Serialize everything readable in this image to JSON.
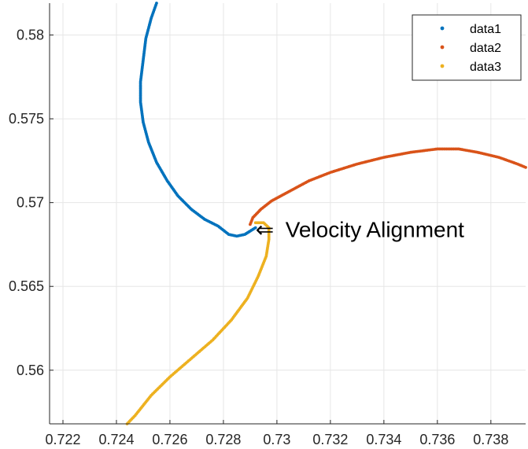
{
  "chart_data": {
    "type": "scatter",
    "title": "",
    "xlabel": "",
    "ylabel": "",
    "xlim": [
      0.7215,
      0.7393
    ],
    "ylim": [
      0.5568,
      0.5819
    ],
    "grid": true,
    "legend_position": "top-right",
    "x_ticks": [
      0.722,
      0.724,
      0.726,
      0.728,
      0.73,
      0.732,
      0.734,
      0.736,
      0.738
    ],
    "x_tick_labels": [
      "0.722",
      "0.724",
      "0.726",
      "0.728",
      "0.73",
      "0.732",
      "0.734",
      "0.736",
      "0.738"
    ],
    "y_ticks": [
      0.56,
      0.565,
      0.57,
      0.575,
      0.58
    ],
    "y_tick_labels": [
      "0.56",
      "0.565",
      "0.57",
      "0.575",
      "0.58"
    ],
    "annotation": {
      "text": "Velocity Alignment",
      "arrow": "⇐",
      "x": 0.7292,
      "y": 0.5684
    },
    "series": [
      {
        "name": "data1",
        "color": "#0072BD",
        "points": [
          [
            0.7255,
            0.5819
          ],
          [
            0.7253,
            0.581
          ],
          [
            0.7251,
            0.5798
          ],
          [
            0.725,
            0.5785
          ],
          [
            0.7249,
            0.5772
          ],
          [
            0.7249,
            0.576
          ],
          [
            0.725,
            0.5748
          ],
          [
            0.7252,
            0.5736
          ],
          [
            0.7255,
            0.5724
          ],
          [
            0.7259,
            0.5713
          ],
          [
            0.7263,
            0.5704
          ],
          [
            0.7268,
            0.5696
          ],
          [
            0.7273,
            0.569
          ],
          [
            0.7278,
            0.5686
          ],
          [
            0.7282,
            0.5681
          ],
          [
            0.7285,
            0.568
          ],
          [
            0.7288,
            0.5681
          ],
          [
            0.729,
            0.5683
          ],
          [
            0.7292,
            0.5685
          ]
        ]
      },
      {
        "name": "data2",
        "color": "#D95319",
        "points": [
          [
            0.729,
            0.5687
          ],
          [
            0.7291,
            0.5691
          ],
          [
            0.7294,
            0.5696
          ],
          [
            0.7298,
            0.5701
          ],
          [
            0.7305,
            0.5707
          ],
          [
            0.7312,
            0.5713
          ],
          [
            0.732,
            0.5718
          ],
          [
            0.733,
            0.5723
          ],
          [
            0.734,
            0.5727
          ],
          [
            0.735,
            0.573
          ],
          [
            0.736,
            0.5732
          ],
          [
            0.7368,
            0.5732
          ],
          [
            0.7375,
            0.573
          ],
          [
            0.7383,
            0.5727
          ],
          [
            0.739,
            0.5723
          ],
          [
            0.7393,
            0.5721
          ]
        ]
      },
      {
        "name": "data3",
        "color": "#EDB120",
        "points": [
          [
            0.7292,
            0.5688
          ],
          [
            0.7295,
            0.5688
          ],
          [
            0.7297,
            0.5685
          ],
          [
            0.7297,
            0.5678
          ],
          [
            0.7296,
            0.5668
          ],
          [
            0.7293,
            0.5656
          ],
          [
            0.7289,
            0.5643
          ],
          [
            0.7283,
            0.563
          ],
          [
            0.7276,
            0.5618
          ],
          [
            0.7268,
            0.5607
          ],
          [
            0.726,
            0.5596
          ],
          [
            0.7253,
            0.5585
          ],
          [
            0.7247,
            0.5573
          ],
          [
            0.7244,
            0.5568
          ]
        ]
      }
    ]
  }
}
